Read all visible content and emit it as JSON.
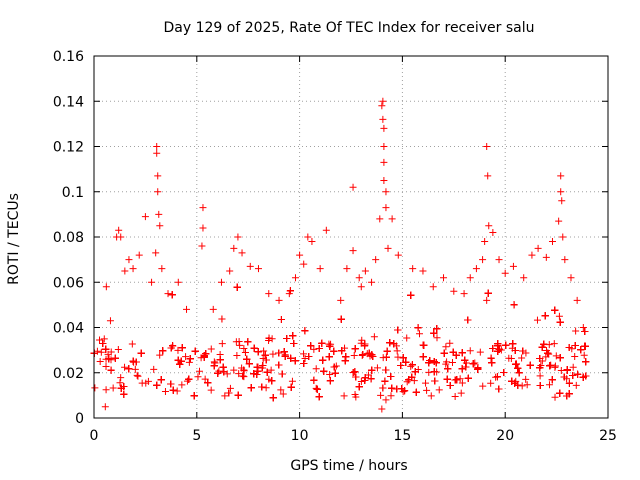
{
  "chart_data": {
    "type": "scatter",
    "title": "Day 129 of 2025, Rate Of TEC Index for receiver salu",
    "xlabel": "GPS time / hours",
    "ylabel": "ROTI / TECUs",
    "xlim": [
      0,
      25
    ],
    "ylim": [
      0,
      0.16
    ],
    "xticks": [
      0,
      5,
      10,
      15,
      20,
      25
    ],
    "xtick_labels": [
      "0",
      "5",
      "10",
      "15",
      "20",
      "25"
    ],
    "yticks": [
      0,
      0.02,
      0.04,
      0.06,
      0.08,
      0.1,
      0.12,
      0.14,
      0.16
    ],
    "ytick_labels": [
      "0",
      "0.02",
      "0.04",
      "0.06",
      "0.08",
      "0.1",
      "0.12",
      "0.14",
      "0.16"
    ],
    "grid": true,
    "marker": "+",
    "color": "#ff0000",
    "series": [
      {
        "name": "ROTI",
        "points": [
          [
            0.3,
            0.025
          ],
          [
            0.5,
            0.035
          ],
          [
            0.6,
            0.058
          ],
          [
            0.55,
            0.005
          ],
          [
            0.8,
            0.043
          ],
          [
            1.1,
            0.08
          ],
          [
            1.2,
            0.083
          ],
          [
            1.3,
            0.08
          ],
          [
            1.5,
            0.065
          ],
          [
            1.7,
            0.07
          ],
          [
            1.9,
            0.066
          ],
          [
            2.2,
            0.072
          ],
          [
            2.5,
            0.089
          ],
          [
            2.8,
            0.06
          ],
          [
            3.0,
            0.073
          ],
          [
            3.05,
            0.12
          ],
          [
            3.05,
            0.117
          ],
          [
            3.1,
            0.107
          ],
          [
            3.1,
            0.1
          ],
          [
            3.15,
            0.09
          ],
          [
            3.2,
            0.085
          ],
          [
            3.3,
            0.066
          ],
          [
            3.6,
            0.055
          ],
          [
            4.1,
            0.06
          ],
          [
            4.5,
            0.048
          ],
          [
            5.3,
            0.093
          ],
          [
            5.3,
            0.084
          ],
          [
            5.25,
            0.076
          ],
          [
            5.8,
            0.048
          ],
          [
            6.2,
            0.06
          ],
          [
            6.6,
            0.065
          ],
          [
            6.8,
            0.075
          ],
          [
            7.0,
            0.08
          ],
          [
            7.2,
            0.073
          ],
          [
            7.6,
            0.067
          ],
          [
            8.0,
            0.066
          ],
          [
            8.5,
            0.055
          ],
          [
            9.0,
            0.052
          ],
          [
            9.5,
            0.055
          ],
          [
            9.8,
            0.062
          ],
          [
            10.0,
            0.072
          ],
          [
            10.2,
            0.068
          ],
          [
            10.4,
            0.08
          ],
          [
            10.6,
            0.078
          ],
          [
            11.0,
            0.066
          ],
          [
            11.3,
            0.083
          ],
          [
            12.0,
            0.052
          ],
          [
            12.3,
            0.066
          ],
          [
            12.6,
            0.074
          ],
          [
            12.6,
            0.102
          ],
          [
            12.9,
            0.062
          ],
          [
            13.0,
            0.058
          ],
          [
            13.2,
            0.065
          ],
          [
            13.5,
            0.06
          ],
          [
            13.7,
            0.07
          ],
          [
            13.9,
            0.088
          ],
          [
            14.0,
            0.138
          ],
          [
            14.05,
            0.14
          ],
          [
            14.05,
            0.132
          ],
          [
            14.1,
            0.128
          ],
          [
            14.1,
            0.12
          ],
          [
            14.1,
            0.113
          ],
          [
            14.1,
            0.105
          ],
          [
            14.2,
            0.1
          ],
          [
            14.2,
            0.093
          ],
          [
            14.3,
            0.075
          ],
          [
            14.5,
            0.088
          ],
          [
            14.0,
            0.004
          ],
          [
            14.2,
            0.008
          ],
          [
            14.8,
            0.072
          ],
          [
            15.5,
            0.066
          ],
          [
            16.0,
            0.065
          ],
          [
            16.5,
            0.058
          ],
          [
            17.0,
            0.062
          ],
          [
            17.5,
            0.056
          ],
          [
            18.0,
            0.055
          ],
          [
            18.3,
            0.062
          ],
          [
            18.6,
            0.066
          ],
          [
            18.9,
            0.07
          ],
          [
            19.0,
            0.078
          ],
          [
            19.1,
            0.12
          ],
          [
            19.15,
            0.107
          ],
          [
            19.2,
            0.085
          ],
          [
            19.4,
            0.082
          ],
          [
            19.7,
            0.07
          ],
          [
            20.0,
            0.064
          ],
          [
            20.4,
            0.067
          ],
          [
            20.9,
            0.062
          ],
          [
            21.3,
            0.072
          ],
          [
            21.6,
            0.075
          ],
          [
            22.0,
            0.071
          ],
          [
            22.3,
            0.078
          ],
          [
            22.6,
            0.087
          ],
          [
            22.7,
            0.1
          ],
          [
            22.7,
            0.107
          ],
          [
            22.75,
            0.096
          ],
          [
            22.8,
            0.08
          ],
          [
            22.9,
            0.07
          ],
          [
            23.2,
            0.062
          ],
          [
            23.5,
            0.052
          ],
          [
            23.8,
            0.04
          ]
        ]
      }
    ]
  }
}
